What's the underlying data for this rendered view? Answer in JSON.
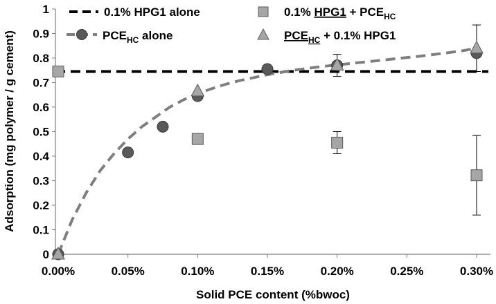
{
  "chart_data": {
    "type": "scatter",
    "title": "",
    "xlabel": "Solid PCE content (%bwoc)",
    "ylabel": "Adsorption (mg polymer / g cement)",
    "xlim": [
      0,
      0.3
    ],
    "ylim": [
      0,
      1
    ],
    "grid": false,
    "legend_position": "top",
    "x_ticks": [
      "0.00%",
      "0.05%",
      "0.10%",
      "0.15%",
      "0.20%",
      "0.25%",
      "0.30%"
    ],
    "y_ticks": [
      "0",
      "0.1",
      "0.2",
      "0.3",
      "0.4",
      "0.5",
      "0.6",
      "0.7",
      "0.8",
      "0.9",
      "1"
    ],
    "series": [
      {
        "key": "hpg1_alone",
        "legend": "0.1% HPG1 alone",
        "style": "dashed-line",
        "color": "#000000",
        "x": [
          0,
          0.3
        ],
        "y": [
          0.745,
          0.745
        ]
      },
      {
        "key": "pce_alone",
        "legend_main": "PCE",
        "legend_sub": "HC",
        "legend_rest": " alone",
        "style": "circle",
        "color": "#595959",
        "x": [
          0,
          0.05,
          0.075,
          0.1,
          0.15,
          0.2,
          0.3
        ],
        "y": [
          0.0,
          0.415,
          0.52,
          0.645,
          0.755,
          0.77,
          0.82
        ]
      },
      {
        "key": "pce_fit",
        "style": "dashed-curve",
        "color": "#7f7f7f",
        "x": [
          0,
          0.01,
          0.02,
          0.03,
          0.04,
          0.05,
          0.06,
          0.07,
          0.08,
          0.09,
          0.1,
          0.11,
          0.12,
          0.13,
          0.14,
          0.15,
          0.16,
          0.17,
          0.18,
          0.19,
          0.2,
          0.21,
          0.22,
          0.23,
          0.24,
          0.25,
          0.26,
          0.27,
          0.28,
          0.29,
          0.3
        ],
        "y": [
          0.0,
          0.14,
          0.25,
          0.34,
          0.41,
          0.47,
          0.52,
          0.56,
          0.6,
          0.63,
          0.655,
          0.675,
          0.693,
          0.708,
          0.72,
          0.732,
          0.742,
          0.751,
          0.759,
          0.766,
          0.772,
          0.778,
          0.784,
          0.79,
          0.796,
          0.802,
          0.808,
          0.815,
          0.822,
          0.83,
          0.84
        ]
      },
      {
        "key": "hpg1_plus_pce",
        "legend_pre": "0.1% ",
        "legend_underlined": "HPG1",
        "legend_mid": " + PCE",
        "legend_sub": "HC",
        "style": "square",
        "color": "#a6a6a6",
        "x": [
          0,
          0.1,
          0.2,
          0.3
        ],
        "y": [
          0.745,
          0.47,
          0.455,
          0.322
        ],
        "error": [
          0,
          0,
          0.045,
          0.162
        ]
      },
      {
        "key": "pce_plus_hpg1",
        "legend_underlined": "PCE",
        "legend_underlined_sub": "HC",
        "legend_rest": " + 0.1% HPG1",
        "style": "triangle",
        "color": "#a6a6a6",
        "x": [
          0,
          0.1,
          0.2,
          0.3
        ],
        "y": [
          0.0,
          0.665,
          0.77,
          0.84
        ],
        "error": [
          0,
          0,
          0.045,
          0.095
        ]
      }
    ]
  }
}
